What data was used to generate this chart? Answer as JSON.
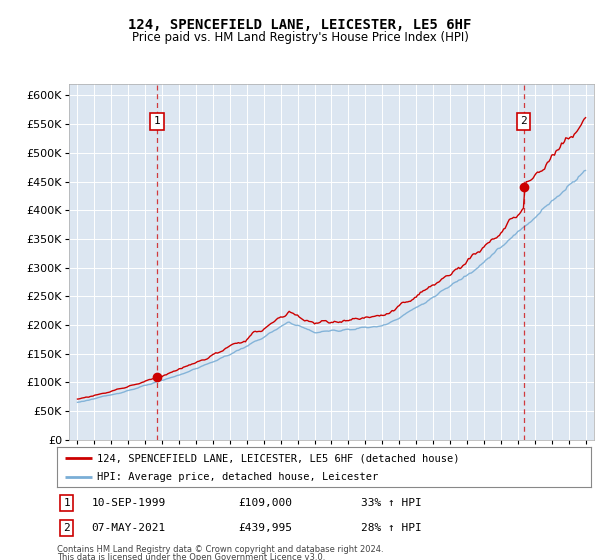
{
  "title": "124, SPENCEFIELD LANE, LEICESTER, LE5 6HF",
  "subtitle": "Price paid vs. HM Land Registry's House Price Index (HPI)",
  "legend_line1": "124, SPENCEFIELD LANE, LEICESTER, LE5 6HF (detached house)",
  "legend_line2": "HPI: Average price, detached house, Leicester",
  "transaction1_date": 1999.7,
  "transaction1_price": 109000,
  "transaction1_label": "10-SEP-1999",
  "transaction1_amount": "£109,000",
  "transaction1_pct": "33% ↑ HPI",
  "transaction2_date": 2021.35,
  "transaction2_price": 439995,
  "transaction2_label": "07-MAY-2021",
  "transaction2_amount": "£439,995",
  "transaction2_pct": "28% ↑ HPI",
  "footer1": "Contains HM Land Registry data © Crown copyright and database right 2024.",
  "footer2": "This data is licensed under the Open Government Licence v3.0.",
  "red_color": "#cc0000",
  "blue_color": "#7aaed6",
  "bg_color": "#dce6f1",
  "plot_bg": "#dce6f1",
  "xmin": 1994.5,
  "xmax": 2025.5,
  "ymin": 0,
  "ymax": 620000
}
